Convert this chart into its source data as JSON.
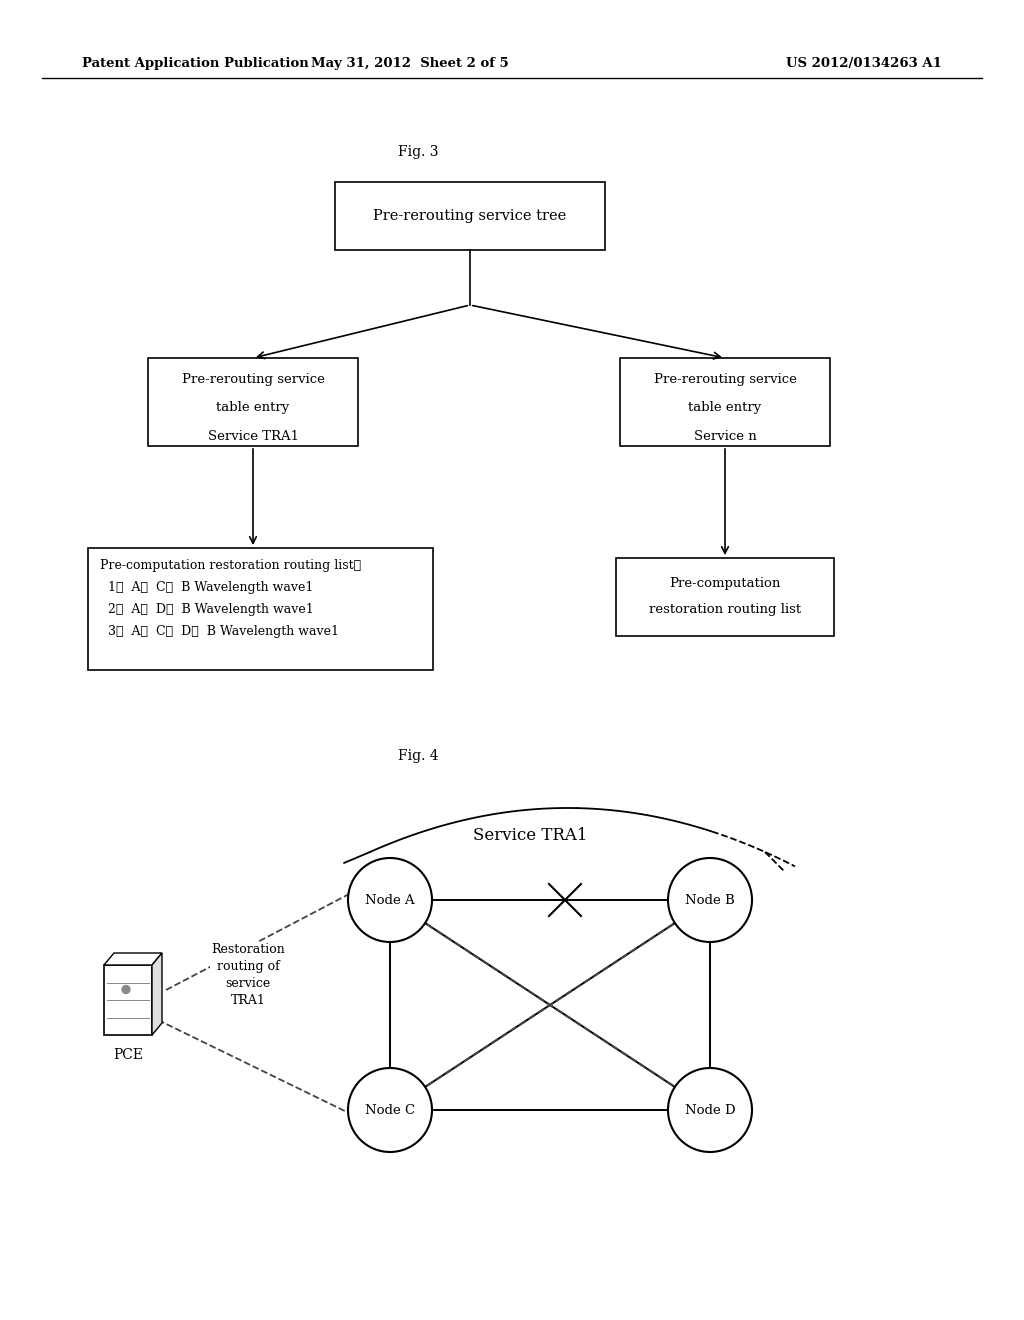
{
  "header_left": "Patent Application Publication",
  "header_mid": "May 31, 2012  Sheet 2 of 5",
  "header_right": "US 2012/0134263 A1",
  "fig3_label": "Fig. 3",
  "fig4_label": "Fig. 4",
  "tree_root_text": "Pre-rerouting service tree",
  "tree_left_line1": "Pre-rerouting service",
  "tree_left_line2": "table entry",
  "tree_left_line3": "Service TRA1",
  "tree_right_line1": "Pre-rerouting service",
  "tree_right_line2": "table entry",
  "tree_right_line3": "Service n",
  "bl_line0": "Pre-computation restoration routing list：",
  "bl_line1": "  1，  A，  C，  B Wavelength wave1",
  "bl_line2": "  2，  A，  D，  B Wavelength wave1",
  "bl_line3": "  3，  A，  C，  D，  B Wavelength wave1",
  "br_line1": "Pre-computation",
  "br_line2": "restoration routing list",
  "service_label": "Service TRA1",
  "node_a_label": "Node A",
  "node_b_label": "Node B",
  "node_c_label": "Node C",
  "node_d_label": "Node D",
  "pce_label": "PCE",
  "restoration_line1": "Restoration",
  "restoration_line2": "routing of",
  "restoration_line3": "service",
  "restoration_line4": "TRA1",
  "bg_color": "#ffffff"
}
